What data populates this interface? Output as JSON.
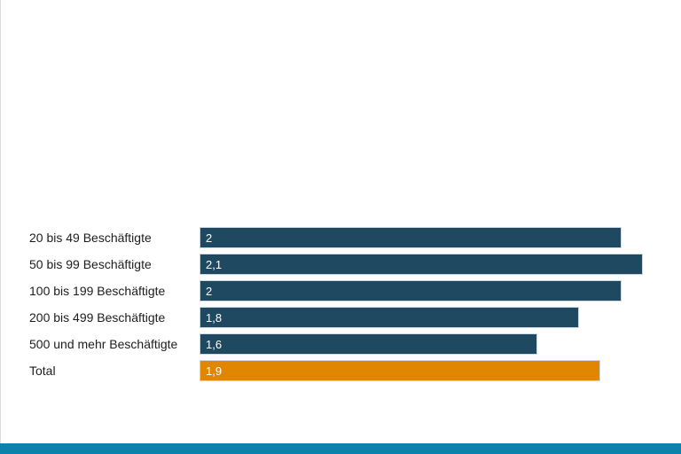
{
  "page": {
    "background": "#ffffff",
    "left_border_color": "#dcdcdc"
  },
  "chart_data": {
    "type": "bar",
    "orientation": "horizontal",
    "title": "",
    "xlabel": "",
    "ylabel": "",
    "xlim": [
      0,
      2.1
    ],
    "grid": false,
    "legend": false,
    "categories": [
      "20 bis 49 Beschäftigte",
      "50 bis 99 Beschäftigte",
      "100 bis 199 Beschäftigte",
      "200 bis 499 Beschäftigte",
      "500 und mehr Beschäftigte",
      "Total"
    ],
    "values": [
      2,
      2.1,
      2,
      1.8,
      1.6,
      1.9
    ],
    "value_labels": [
      "2",
      "2,1",
      "2",
      "1,8",
      "1,6",
      "1,9"
    ],
    "bar_colors": [
      "#1f4961",
      "#1f4961",
      "#1f4961",
      "#1f4961",
      "#1f4961",
      "#e08600"
    ],
    "bar_border_color": "#ccd9e3",
    "value_label_color": "#ffffff",
    "category_label_color": "#1d1d1d"
  },
  "footer": {
    "bar_color": "#0c81ab"
  }
}
